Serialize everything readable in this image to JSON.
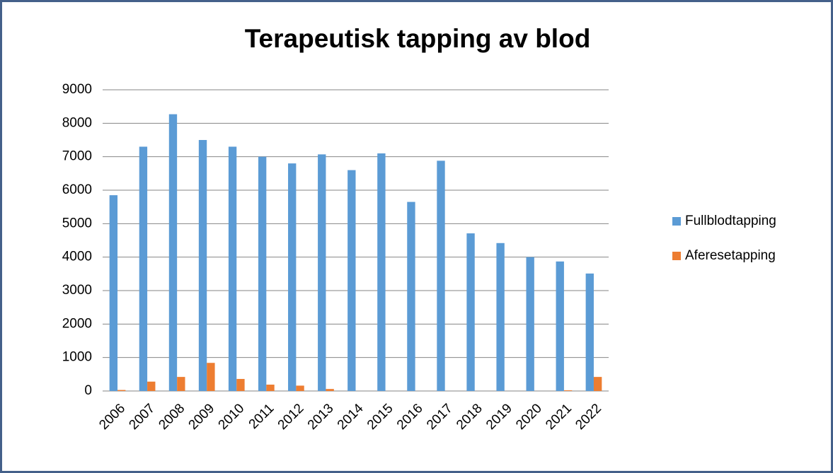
{
  "chart_data": {
    "type": "bar",
    "title": "Terapeutisk tapping av blod",
    "categories": [
      "2006",
      "2007",
      "2008",
      "2009",
      "2010",
      "2011",
      "2012",
      "2013",
      "2014",
      "2015",
      "2016",
      "2017",
      "2018",
      "2019",
      "2020",
      "2021",
      "2022"
    ],
    "series": [
      {
        "name": "Fullblodtapping",
        "color": "#5b9bd5",
        "values": [
          5850,
          7300,
          8270,
          7500,
          7300,
          7000,
          6800,
          7070,
          6600,
          7100,
          5650,
          6880,
          4710,
          4420,
          4000,
          3870,
          3510
        ]
      },
      {
        "name": "Aferesetapping",
        "color": "#ed7d31",
        "values": [
          30,
          280,
          420,
          840,
          360,
          190,
          160,
          60,
          0,
          0,
          0,
          0,
          0,
          0,
          0,
          20,
          420
        ]
      }
    ],
    "ylim": [
      0,
      9000
    ],
    "yticks": [
      0,
      1000,
      2000,
      3000,
      4000,
      5000,
      6000,
      7000,
      8000,
      9000
    ],
    "grid": true,
    "legend": "right"
  }
}
